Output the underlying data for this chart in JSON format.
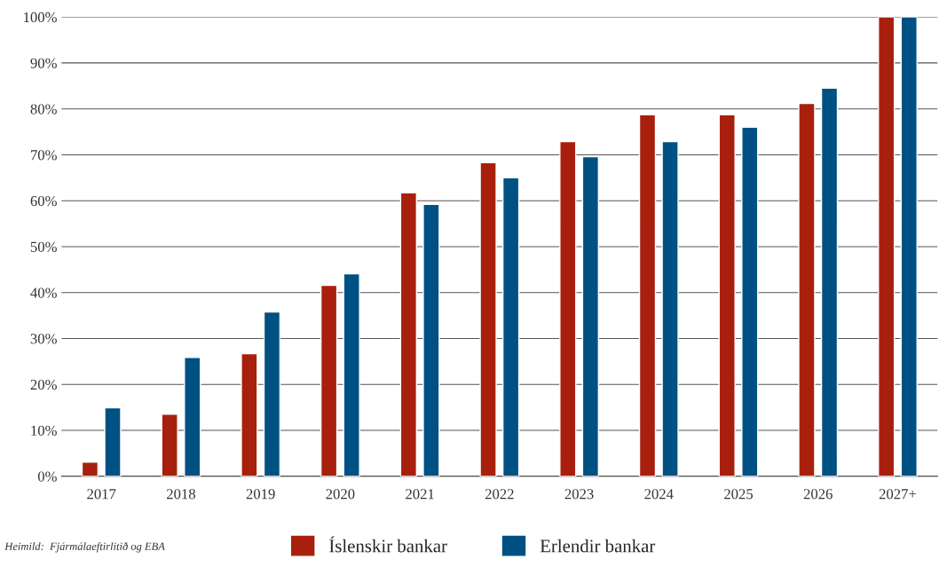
{
  "chart_data": {
    "type": "bar",
    "categories": [
      "2017",
      "2018",
      "2019",
      "2020",
      "2021",
      "2022",
      "2023",
      "2024",
      "2025",
      "2026",
      "2027+"
    ],
    "series": [
      {
        "name": "Íslenskir bankar",
        "color": "#a8200d",
        "values": [
          3.1,
          13.5,
          26.7,
          41.6,
          61.7,
          68.3,
          72.9,
          78.7,
          78.7,
          81.2,
          100
        ]
      },
      {
        "name": "Erlendir bankar",
        "color": "#005183",
        "values": [
          14.9,
          25.9,
          35.8,
          44.1,
          59.2,
          65,
          69.6,
          72.9,
          76,
          84.5,
          100
        ]
      }
    ],
    "ylim": [
      0,
      100
    ],
    "yticks": [
      {
        "value": 0,
        "label": "0%"
      },
      {
        "value": 10,
        "label": "10%"
      },
      {
        "value": 20,
        "label": "20%"
      },
      {
        "value": 30,
        "label": "30%"
      },
      {
        "value": 40,
        "label": "40%"
      },
      {
        "value": 50,
        "label": "50%"
      },
      {
        "value": 60,
        "label": "60%"
      },
      {
        "value": 70,
        "label": "70%"
      },
      {
        "value": 80,
        "label": "80%"
      },
      {
        "value": 90,
        "label": "90%"
      },
      {
        "value": 100,
        "label": "100%"
      }
    ],
    "grid": "y",
    "legend": "bottom",
    "annotations": [
      "Heimild:  Fjármálaeftirlitið og EBA"
    ]
  }
}
